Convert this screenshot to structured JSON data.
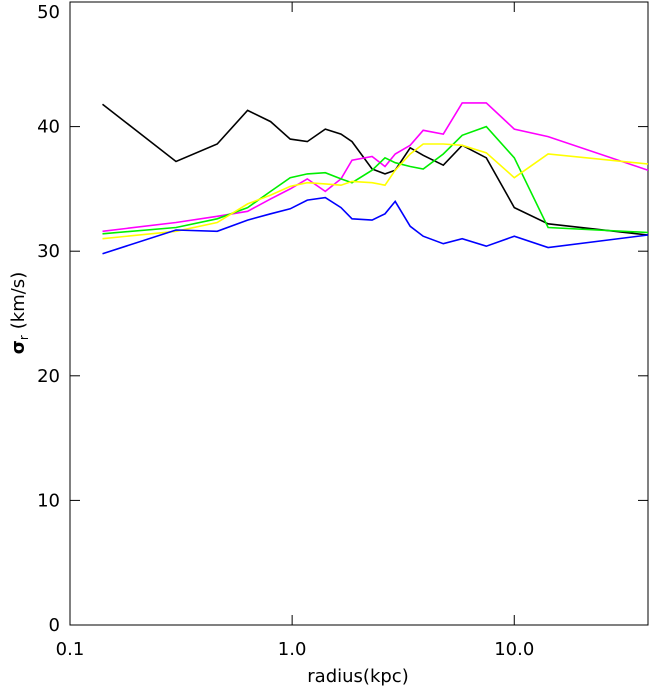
{
  "chart_data": {
    "type": "line",
    "xlabel": "radius(kpc)",
    "ylabel": {
      "symbol": "σ",
      "subscript": "r",
      "unit": "(km/s)"
    },
    "x": [
      0.14,
      0.3,
      0.46,
      0.63,
      0.8,
      0.98,
      1.17,
      1.41,
      1.66,
      1.86,
      2.29,
      2.62,
      2.91,
      3.4,
      3.89,
      4.79,
      5.83,
      7.48,
      10,
      14.2,
      40
    ],
    "series": [
      {
        "color": "#000000",
        "values": [
          41.8,
          37.2,
          38.6,
          41.3,
          40.4,
          39.0,
          38.8,
          39.8,
          39.4,
          38.8,
          36.6,
          36.2,
          36.5,
          38.3,
          37.7,
          36.9,
          38.5,
          37.5,
          33.5,
          32.2,
          31.3
        ]
      },
      {
        "color": "#ff00ff",
        "values": [
          31.6,
          32.3,
          32.8,
          33.2,
          34.2,
          35.0,
          35.8,
          34.8,
          35.8,
          37.3,
          37.6,
          36.8,
          37.8,
          38.5,
          39.7,
          39.4,
          41.9,
          41.9,
          39.8,
          39.2,
          36.5
        ]
      },
      {
        "color": "#00ee00",
        "values": [
          31.4,
          31.9,
          32.6,
          33.5,
          34.8,
          35.9,
          36.2,
          36.3,
          35.8,
          35.5,
          36.5,
          37.5,
          37.1,
          36.8,
          36.6,
          37.8,
          39.3,
          40.0,
          37.5,
          31.9,
          31.5
        ]
      },
      {
        "color": "#ffff00",
        "values": [
          31.0,
          31.6,
          32.3,
          33.8,
          34.5,
          35.2,
          35.5,
          35.4,
          35.3,
          35.6,
          35.5,
          35.3,
          36.5,
          37.8,
          38.6,
          38.6,
          38.5,
          37.9,
          35.9,
          37.8,
          37.0
        ]
      },
      {
        "color": "#0000ff",
        "values": [
          29.8,
          31.7,
          31.6,
          32.5,
          33.0,
          33.4,
          34.1,
          34.3,
          33.5,
          32.6,
          32.5,
          33.0,
          34.0,
          32.0,
          31.2,
          30.6,
          31.0,
          30.4,
          31.2,
          30.3,
          31.3
        ]
      }
    ],
    "xscale": "log",
    "xlim": [
      0.1,
      40
    ],
    "xticks": [
      0.1,
      {
        "value": 1,
        "label": "1.0"
      },
      {
        "value": 10,
        "label": "10.0"
      }
    ],
    "ylim": [
      0,
      50
    ],
    "yticks": [
      0,
      10,
      20,
      30,
      40,
      50
    ]
  }
}
